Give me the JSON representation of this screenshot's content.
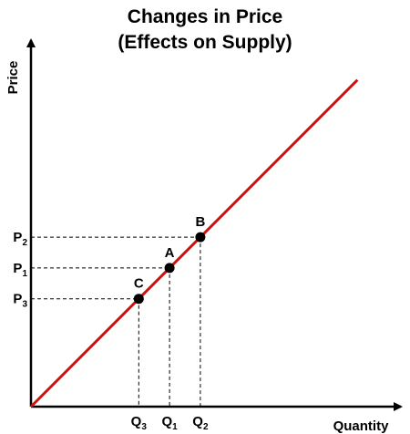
{
  "chart_data": {
    "type": "line",
    "title": [
      "Changes in Price",
      "(Effects on Supply)"
    ],
    "xlabel": "Quantity",
    "ylabel": "Price",
    "xlim": [
      0,
      10
    ],
    "ylim": [
      0,
      10
    ],
    "grid": false,
    "series": [
      {
        "name": "",
        "color": "#cc1111",
        "x": [
          0,
          10.6
        ],
        "y": [
          0,
          10.6
        ]
      }
    ],
    "points": [
      {
        "label": "B",
        "x": 5.5,
        "y": 5.5,
        "xtick": "Q",
        "xsub": "2",
        "ytick": "P",
        "ysub": "2"
      },
      {
        "label": "A",
        "x": 4.5,
        "y": 4.5,
        "xtick": "Q",
        "xsub": "1",
        "ytick": "P",
        "ysub": "1"
      },
      {
        "label": "C",
        "x": 3.5,
        "y": 3.5,
        "xtick": "Q",
        "xsub": "3",
        "ytick": "P",
        "ysub": "3"
      }
    ]
  }
}
